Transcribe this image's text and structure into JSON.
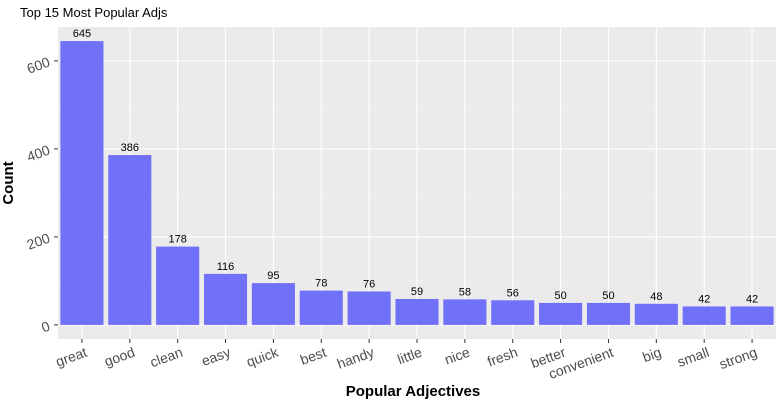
{
  "chart_data": {
    "type": "bar",
    "title": "Top 15 Most Popular Adjs",
    "xlabel": "Popular Adjectives",
    "ylabel": "Count",
    "categories": [
      "great",
      "good",
      "clean",
      "easy",
      "quick",
      "best",
      "handy",
      "little",
      "nice",
      "fresh",
      "better",
      "convenient",
      "big",
      "small",
      "strong"
    ],
    "values": [
      645,
      386,
      178,
      116,
      95,
      78,
      76,
      59,
      58,
      56,
      50,
      50,
      48,
      42,
      42
    ],
    "yticks": [
      0,
      200,
      400,
      600
    ],
    "ylim": [
      -32,
      677
    ],
    "grid": true,
    "legend": "none",
    "colors": {
      "bar": "#7070f8",
      "panel": "#ebebeb",
      "grid_major": "#ffffff",
      "grid_minor": "#f4f4f4"
    }
  }
}
